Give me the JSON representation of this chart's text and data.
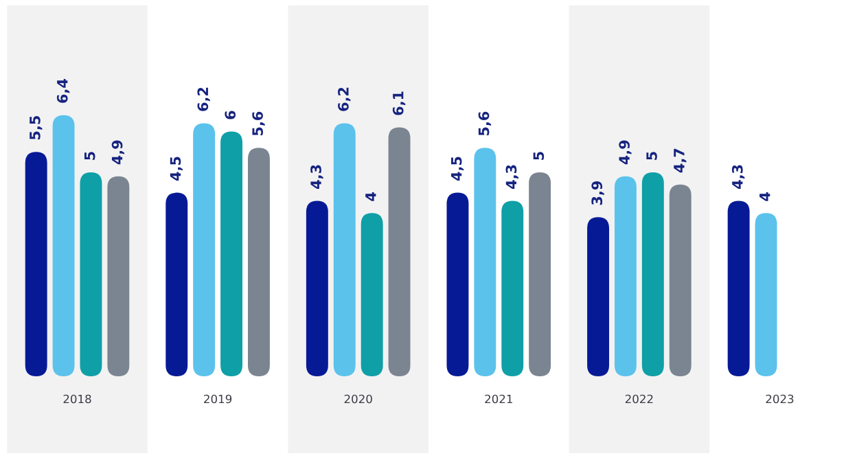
{
  "chart_data": {
    "type": "bar",
    "categories": [
      "2018",
      "2019",
      "2020",
      "2021",
      "2022",
      "2023"
    ],
    "series": [
      {
        "color": "#071a96",
        "values": [
          5.5,
          4.5,
          4.3,
          4.5,
          3.9,
          4.3
        ],
        "value_labels": [
          "5,5",
          "4,5",
          "4,3",
          "4,5",
          "3,9",
          "4,3"
        ]
      },
      {
        "color": "#5bc2ec",
        "values": [
          6.4,
          6.2,
          6.2,
          5.6,
          4.9,
          4
        ],
        "value_labels": [
          "6,4",
          "6,2",
          "6,2",
          "5,6",
          "4,9",
          "4"
        ]
      },
      {
        "color": "#0f9fa7",
        "values": [
          5,
          6,
          4,
          4.3,
          5,
          null
        ],
        "value_labels": [
          "5",
          "6",
          "4",
          "4,3",
          "5",
          null
        ]
      },
      {
        "color": "#7a8591",
        "values": [
          4.9,
          5.6,
          6.1,
          5,
          4.7,
          null
        ],
        "value_labels": [
          "4,9",
          "5,6",
          "6,1",
          "5",
          "4,7",
          null
        ]
      }
    ],
    "tick_labels": "x",
    "bands": [
      {
        "axis": "x",
        "from": "2018",
        "to": "2018",
        "color": "#f2f2f3"
      },
      {
        "axis": "x",
        "from": "2020",
        "to": "2020",
        "color": "#f2f2f3"
      },
      {
        "axis": "x",
        "from": "2022",
        "to": "2022",
        "color": "#f2f2f3"
      }
    ]
  }
}
